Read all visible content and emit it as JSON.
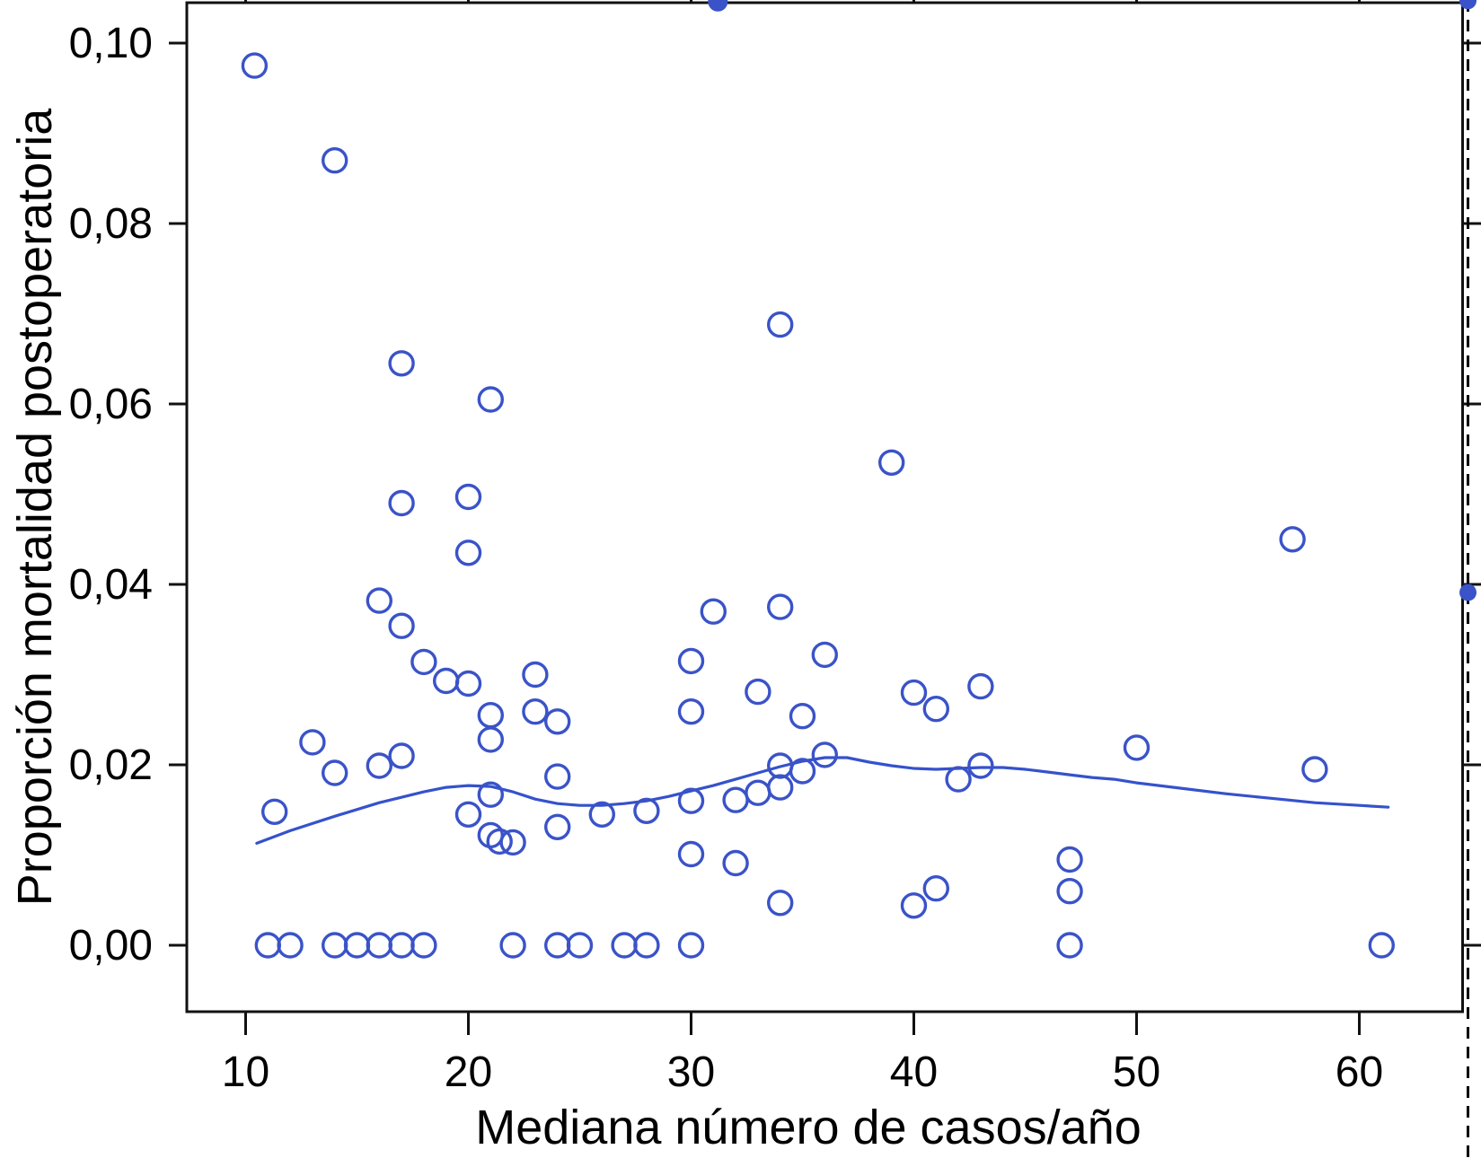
{
  "chart_data": {
    "type": "scatter",
    "title": "",
    "xlabel": "Mediana número de casos/año",
    "ylabel": "Proporción mortalidad postoperatoria",
    "xlim": [
      7.4,
      64.6
    ],
    "ylim": [
      -0.0074,
      0.1045
    ],
    "grid": false,
    "legend": "none",
    "point_color": "#3a53c8",
    "curve_color": "#3552cc",
    "axis_color": "#111111",
    "x_ticks": [
      {
        "value": 10,
        "label": "10"
      },
      {
        "value": 20,
        "label": "20"
      },
      {
        "value": 30,
        "label": "30"
      },
      {
        "value": 40,
        "label": "40"
      },
      {
        "value": 50,
        "label": "50"
      },
      {
        "value": 60,
        "label": "60"
      }
    ],
    "y_ticks": [
      {
        "value": 0.0,
        "label": "0,00"
      },
      {
        "value": 0.02,
        "label": "0,02"
      },
      {
        "value": 0.04,
        "label": "0,04"
      },
      {
        "value": 0.06,
        "label": "0,06"
      },
      {
        "value": 0.08,
        "label": "0,08"
      },
      {
        "value": 0.1,
        "label": "0,10"
      }
    ],
    "points": [
      [
        10.4,
        0.0975
      ],
      [
        14,
        0.087
      ],
      [
        34,
        0.0688
      ],
      [
        17,
        0.0645
      ],
      [
        21,
        0.0605
      ],
      [
        39,
        0.0535
      ],
      [
        20,
        0.0497
      ],
      [
        17,
        0.049
      ],
      [
        57,
        0.045
      ],
      [
        20,
        0.0435
      ],
      [
        16,
        0.0382
      ],
      [
        34,
        0.0375
      ],
      [
        31,
        0.037
      ],
      [
        17,
        0.0354
      ],
      [
        36,
        0.0322
      ],
      [
        18,
        0.0314
      ],
      [
        30,
        0.0315
      ],
      [
        23,
        0.03
      ],
      [
        19,
        0.0293
      ],
      [
        20,
        0.029
      ],
      [
        43,
        0.0287
      ],
      [
        33,
        0.0281
      ],
      [
        40,
        0.028
      ],
      [
        41,
        0.0262
      ],
      [
        30,
        0.0259
      ],
      [
        23,
        0.0259
      ],
      [
        21,
        0.0255
      ],
      [
        35,
        0.0254
      ],
      [
        24,
        0.0248
      ],
      [
        13,
        0.0225
      ],
      [
        21,
        0.0228
      ],
      [
        50,
        0.0219
      ],
      [
        36,
        0.0211
      ],
      [
        17,
        0.021
      ],
      [
        34,
        0.0199
      ],
      [
        43,
        0.0199
      ],
      [
        16,
        0.0199
      ],
      [
        58,
        0.0195
      ],
      [
        35,
        0.0193
      ],
      [
        14,
        0.0191
      ],
      [
        24,
        0.0187
      ],
      [
        42,
        0.0184
      ],
      [
        34,
        0.0175
      ],
      [
        33,
        0.0169
      ],
      [
        21,
        0.0167
      ],
      [
        30,
        0.016
      ],
      [
        32,
        0.0161
      ],
      [
        28,
        0.0149
      ],
      [
        26,
        0.0145
      ],
      [
        20,
        0.0145
      ],
      [
        11.3,
        0.0148
      ],
      [
        24,
        0.0131
      ],
      [
        21,
        0.0122
      ],
      [
        21.4,
        0.0115
      ],
      [
        22,
        0.0114
      ],
      [
        30,
        0.0101
      ],
      [
        32,
        0.0091
      ],
      [
        47,
        0.0095
      ],
      [
        47,
        0.006
      ],
      [
        41,
        0.0063
      ],
      [
        40,
        0.0044
      ],
      [
        34,
        0.0047
      ],
      [
        11,
        0.0
      ],
      [
        12,
        0.0
      ],
      [
        14,
        0.0
      ],
      [
        15,
        0.0
      ],
      [
        16,
        0.0
      ],
      [
        17,
        0.0
      ],
      [
        18,
        0.0
      ],
      [
        22,
        0.0
      ],
      [
        24,
        0.0
      ],
      [
        25,
        0.0
      ],
      [
        27,
        0.0
      ],
      [
        28,
        0.0
      ],
      [
        30,
        0.0
      ],
      [
        47,
        0.0
      ],
      [
        61,
        0.0
      ]
    ],
    "clipped_points": [
      [
        31.2,
        0.1046
      ]
    ],
    "loess": [
      [
        10.5,
        0.0113
      ],
      [
        12,
        0.0127
      ],
      [
        14,
        0.0143
      ],
      [
        16,
        0.0158
      ],
      [
        18,
        0.017
      ],
      [
        19,
        0.0175
      ],
      [
        20,
        0.0177
      ],
      [
        21,
        0.0176
      ],
      [
        22,
        0.017
      ],
      [
        23,
        0.0162
      ],
      [
        24,
        0.0157
      ],
      [
        25,
        0.0155
      ],
      [
        26,
        0.0155
      ],
      [
        27,
        0.0157
      ],
      [
        28,
        0.016
      ],
      [
        29,
        0.0165
      ],
      [
        30,
        0.0171
      ],
      [
        31,
        0.0177
      ],
      [
        32,
        0.0184
      ],
      [
        33,
        0.0191
      ],
      [
        34,
        0.0198
      ],
      [
        35,
        0.0204
      ],
      [
        36,
        0.0208
      ],
      [
        37,
        0.0208
      ],
      [
        38,
        0.0203
      ],
      [
        39,
        0.0199
      ],
      [
        40,
        0.0196
      ],
      [
        41,
        0.0195
      ],
      [
        42,
        0.0196
      ],
      [
        43,
        0.0197
      ],
      [
        44,
        0.0197
      ],
      [
        45,
        0.0195
      ],
      [
        46,
        0.0192
      ],
      [
        47,
        0.0189
      ],
      [
        48,
        0.0186
      ],
      [
        49,
        0.0184
      ],
      [
        50,
        0.018
      ],
      [
        52,
        0.0174
      ],
      [
        54,
        0.0168
      ],
      [
        56,
        0.0163
      ],
      [
        58,
        0.0158
      ],
      [
        60,
        0.0155
      ],
      [
        61.3,
        0.0153
      ]
    ],
    "divider_dots_y": [
      0.1047,
      0.0391
    ]
  }
}
